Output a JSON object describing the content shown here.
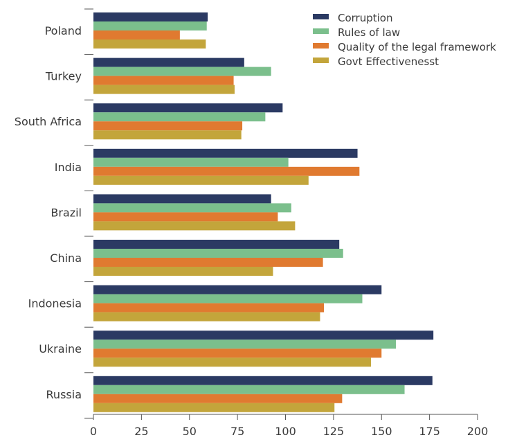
{
  "chart_data": {
    "type": "bar",
    "orientation": "horizontal",
    "categories": [
      "Poland",
      "Turkey",
      "South Africa",
      "India",
      "Brazil",
      "China",
      "Indonesia",
      "Ukraine",
      "Russia"
    ],
    "series": [
      {
        "name": "Corruption",
        "color": "#2b3a63",
        "values": [
          59.5,
          78.5,
          98.5,
          137.5,
          92.5,
          128,
          150,
          177,
          176.5
        ]
      },
      {
        "name": "Rules of law",
        "color": "#7bbf8c",
        "values": [
          59,
          92.5,
          89.5,
          101.5,
          103,
          130,
          140,
          157.5,
          162
        ]
      },
      {
        "name": "Quality of the legal framework",
        "color": "#e07a30",
        "values": [
          45,
          73,
          77.5,
          138.5,
          96,
          119.5,
          120,
          150,
          129.5
        ]
      },
      {
        "name": "Govt Effectivenesst",
        "color": "#c3a53b",
        "values": [
          58.5,
          73.5,
          77,
          112,
          105,
          93.5,
          118,
          144.5,
          125.5
        ]
      }
    ],
    "xlim": [
      0,
      200
    ],
    "xticks": [
      "0",
      "25",
      "50",
      "75",
      "100",
      "125",
      "150",
      "175",
      "200"
    ],
    "legend_position": "top-right",
    "grid": false,
    "title": "",
    "xlabel": "",
    "ylabel": ""
  }
}
